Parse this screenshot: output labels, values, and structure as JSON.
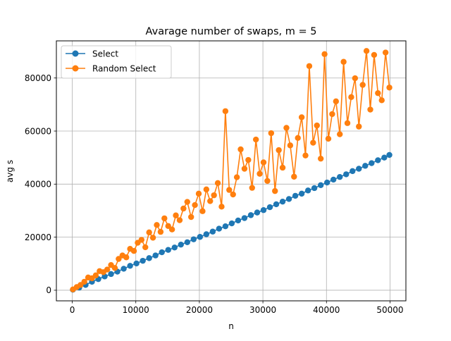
{
  "chart_data": {
    "type": "line",
    "title": "Avarage number of swaps, m = 5",
    "xlabel": "n",
    "ylabel": "avg s",
    "xlim": [
      -2500,
      52500
    ],
    "ylim": [
      -4000,
      94000
    ],
    "xticks": [
      0,
      10000,
      20000,
      30000,
      40000,
      50000
    ],
    "xtick_labels": [
      "0",
      "10000",
      "20000",
      "30000",
      "40000",
      "50000"
    ],
    "yticks": [
      0,
      20000,
      40000,
      60000,
      80000
    ],
    "ytick_labels": [
      "0",
      "20000",
      "40000",
      "60000",
      "80000"
    ],
    "grid": true,
    "legend_position": "upper-left",
    "series": [
      {
        "name": "Select",
        "color": "#1f77b4",
        "marker": "circle",
        "x": [
          100,
          1100,
          2100,
          3100,
          4100,
          5100,
          6100,
          7100,
          8100,
          9100,
          10100,
          11100,
          12100,
          13100,
          14100,
          15100,
          16100,
          17100,
          18100,
          19100,
          20100,
          21100,
          22100,
          23100,
          24100,
          25100,
          26100,
          27100,
          28100,
          29100,
          30100,
          31100,
          32100,
          33100,
          34100,
          35100,
          36100,
          37100,
          38100,
          39100,
          40100,
          41100,
          42100,
          43100,
          44100,
          45100,
          46100,
          47100,
          48100,
          49100,
          49900
        ],
        "values": [
          200,
          1000,
          2000,
          3200,
          4200,
          5200,
          6100,
          7000,
          8100,
          9200,
          10100,
          11100,
          12100,
          13100,
          14300,
          15200,
          16100,
          17200,
          18100,
          19200,
          20100,
          21100,
          22100,
          23200,
          24100,
          25200,
          26300,
          27200,
          28300,
          29300,
          30200,
          31300,
          32400,
          33400,
          34400,
          35600,
          36400,
          37600,
          38500,
          39600,
          40600,
          41700,
          42700,
          43700,
          44900,
          45800,
          46900,
          47900,
          49000,
          50000,
          51000
        ]
      },
      {
        "name": "Random Select",
        "color": "#ff7f0e",
        "marker": "circle",
        "x": [
          100,
          700,
          1300,
          1900,
          2500,
          3100,
          3700,
          4300,
          4900,
          5500,
          6100,
          6700,
          7300,
          7900,
          8500,
          9100,
          9700,
          10300,
          10900,
          11500,
          12100,
          12700,
          13300,
          13900,
          14500,
          15100,
          15700,
          16300,
          16900,
          17500,
          18100,
          18700,
          19300,
          19900,
          20500,
          21100,
          21700,
          22300,
          22900,
          23500,
          24100,
          24700,
          25300,
          25900,
          26500,
          27100,
          27700,
          28300,
          28900,
          29500,
          30100,
          30700,
          31300,
          31900,
          32500,
          33100,
          33700,
          34300,
          34900,
          35500,
          36100,
          36700,
          37300,
          37900,
          38500,
          39100,
          39700,
          40300,
          40900,
          41500,
          42100,
          42700,
          43300,
          43900,
          44500,
          45100,
          45700,
          46300,
          46900,
          47500,
          48100,
          48700,
          49300,
          49900
        ],
        "values": [
          300,
          1200,
          2000,
          3200,
          4800,
          4500,
          5600,
          7200,
          6800,
          7800,
          9500,
          8400,
          11800,
          13100,
          12400,
          15600,
          14800,
          17900,
          19000,
          16200,
          21800,
          19800,
          24600,
          22000,
          27100,
          24200,
          22900,
          28200,
          26400,
          30800,
          33300,
          27600,
          32100,
          36400,
          29800,
          38000,
          33600,
          35800,
          40400,
          31500,
          67500,
          37800,
          36100,
          42600,
          53100,
          45800,
          49100,
          38600,
          56800,
          43900,
          48200,
          41200,
          59200,
          37400,
          52800,
          46200,
          61200,
          54600,
          42800,
          57400,
          65200,
          50800,
          84500,
          55600,
          62100,
          49600,
          89000,
          57100,
          66400,
          71200,
          58800,
          86100,
          63000,
          72800,
          79900,
          61700,
          77400,
          90200,
          68100,
          88700,
          74300,
          71600,
          89600,
          76400
        ]
      }
    ]
  }
}
